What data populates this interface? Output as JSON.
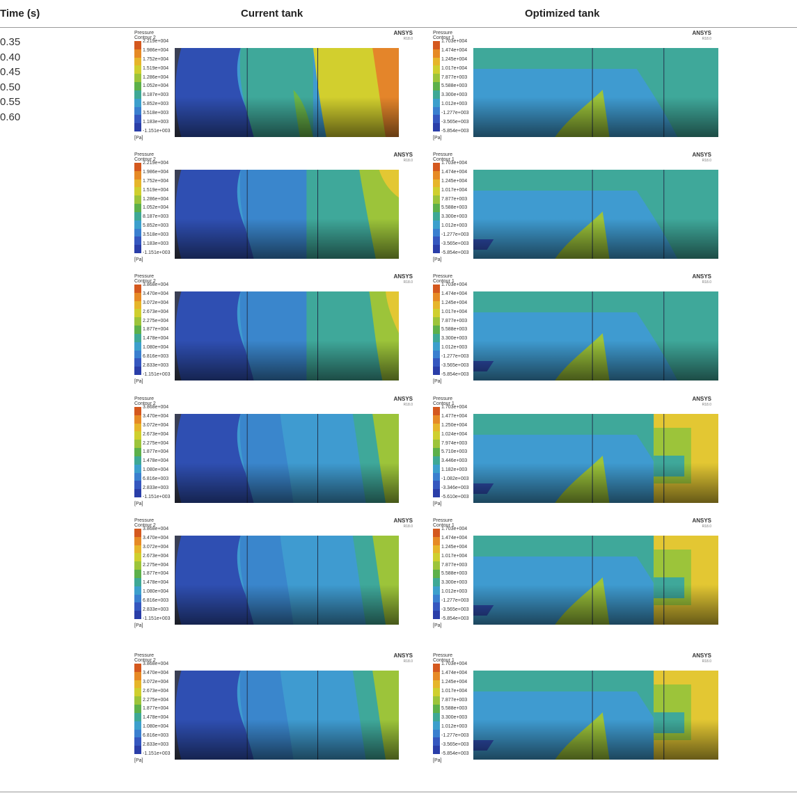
{
  "headers": {
    "time": "Time (s)",
    "current": "Current tank",
    "optimized": "Optimized tank"
  },
  "times": [
    "0.35",
    "0.40",
    "0.45",
    "0.50",
    "0.55",
    "0.60"
  ],
  "ansys": {
    "brand": "ANSYS",
    "version": "R18.0"
  },
  "unit": "[Pa]",
  "legend_colors": [
    "#d4581e",
    "#e68a25",
    "#e6b52a",
    "#cfcf2e",
    "#9cc43a",
    "#5cb04a",
    "#3ea895",
    "#3c9fcc",
    "#3a7fcf",
    "#3557bf",
    "#2a3ea8"
  ],
  "rows": [
    {
      "current": {
        "title": "Pressure\nContour 2",
        "labels": [
          "2.219e+004",
          "1.986e+004",
          "1.752e+004",
          "1.519e+004",
          "1.286e+004",
          "1.052e+004",
          "8.187e+003",
          "5.852e+003",
          "3.518e+003",
          "1.183e+003",
          "-1.151e+003"
        ]
      },
      "optimized": {
        "title": "Pressure\nContour 1",
        "labels": [
          "1.703e+004",
          "1.474e+004",
          "1.245e+004",
          "1.017e+004",
          "7.877e+003",
          "5.588e+003",
          "3.300e+003",
          "1.012e+003",
          "-1.277e+003",
          "-3.565e+003",
          "-5.854e+003"
        ]
      }
    },
    {
      "current": {
        "title": "Pressure\nContour 2",
        "labels": [
          "2.219e+004",
          "1.986e+004",
          "1.752e+004",
          "1.519e+004",
          "1.286e+004",
          "1.052e+004",
          "8.187e+003",
          "5.852e+003",
          "3.518e+003",
          "1.183e+003",
          "-1.151e+003"
        ]
      },
      "optimized": {
        "title": "Pressure\nContour 1",
        "labels": [
          "1.703e+004",
          "1.474e+004",
          "1.245e+004",
          "1.017e+004",
          "7.877e+003",
          "5.588e+003",
          "3.300e+003",
          "1.012e+003",
          "-1.277e+003",
          "-3.565e+003",
          "-5.854e+003"
        ]
      }
    },
    {
      "current": {
        "title": "Pressure\nContour 2",
        "labels": [
          "3.868e+004",
          "3.470e+004",
          "3.072e+004",
          "2.673e+004",
          "2.275e+004",
          "1.877e+004",
          "1.478e+004",
          "1.080e+004",
          "6.816e+003",
          "2.833e+003",
          "-1.151e+003"
        ]
      },
      "optimized": {
        "title": "Pressure\nContour 1",
        "labels": [
          "1.703e+004",
          "1.474e+004",
          "1.245e+004",
          "1.017e+004",
          "7.877e+003",
          "5.588e+003",
          "3.300e+003",
          "1.012e+003",
          "-1.277e+003",
          "-3.565e+003",
          "-5.854e+003"
        ]
      }
    },
    {
      "current": {
        "title": "Pressure\nContour 2",
        "labels": [
          "3.868e+004",
          "3.470e+004",
          "3.072e+004",
          "2.673e+004",
          "2.275e+004",
          "1.877e+004",
          "1.478e+004",
          "1.080e+004",
          "6.816e+003",
          "2.833e+003",
          "-1.151e+003"
        ]
      },
      "optimized": {
        "title": "Pressure\nContour 1",
        "labels": [
          "1.703e+004",
          "1.477e+004",
          "1.250e+004",
          "1.024e+004",
          "7.974e+003",
          "5.710e+003",
          "3.446e+003",
          "1.182e+003",
          "-1.082e+003",
          "-3.346e+003",
          "-5.610e+003"
        ]
      }
    },
    {
      "current": {
        "title": "Pressure\nContour 2",
        "labels": [
          "3.868e+004",
          "3.470e+004",
          "3.072e+004",
          "2.673e+004",
          "2.275e+004",
          "1.877e+004",
          "1.478e+004",
          "1.080e+004",
          "6.816e+003",
          "2.833e+003",
          "-1.151e+003"
        ]
      },
      "optimized": {
        "title": "Pressure\nContour 1",
        "labels": [
          "1.703e+004",
          "1.474e+004",
          "1.245e+004",
          "1.017e+004",
          "7.877e+003",
          "5.588e+003",
          "3.300e+003",
          "1.012e+003",
          "-1.277e+003",
          "-3.565e+003",
          "-5.854e+003"
        ]
      }
    },
    {
      "current": {
        "title": "Pressure\nContour 2",
        "labels": [
          "3.868e+004",
          "3.470e+004",
          "3.072e+004",
          "2.673e+004",
          "2.275e+004",
          "1.877e+004",
          "1.478e+004",
          "1.080e+004",
          "6.816e+003",
          "2.833e+003",
          "-1.151e+003"
        ]
      },
      "optimized": {
        "title": "Pressure\nContour 1",
        "labels": [
          "1.703e+004",
          "1.474e+004",
          "1.245e+004",
          "1.017e+004",
          "7.877e+003",
          "5.588e+003",
          "3.300e+003",
          "1.012e+003",
          "-1.277e+003",
          "-3.565e+003",
          "-5.854e+003"
        ]
      }
    }
  ]
}
